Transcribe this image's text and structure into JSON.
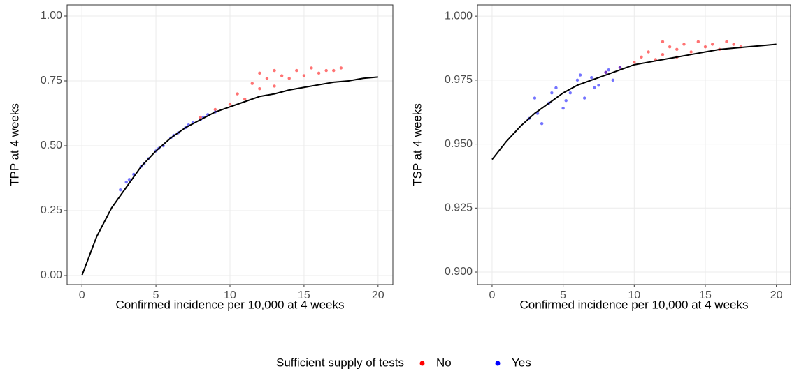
{
  "chart_data": [
    {
      "type": "scatter",
      "xlabel": "Confirmed incidence per 10,000 at 4 weeks",
      "ylabel": "TPP at 4 weeks",
      "xlim": [
        -1,
        21
      ],
      "ylim": [
        -0.035,
        1.043
      ],
      "xticks": [
        0,
        5,
        10,
        15,
        20
      ],
      "yticks": [
        {
          "value": 0,
          "label": "0.00"
        },
        0.25,
        {
          "value": 0.5,
          "label": "0.50"
        },
        0.75,
        {
          "value": 1,
          "label": "1.00"
        }
      ],
      "grid": true,
      "series": [
        {
          "name": "No",
          "color": "#ff0000",
          "x": [
            8,
            9,
            10,
            10.5,
            11,
            11.5,
            12,
            12,
            12.5,
            13,
            13,
            13.5,
            14,
            14.5,
            15,
            15.5,
            16,
            16.5,
            17,
            17.5
          ],
          "values": [
            0.61,
            0.64,
            0.66,
            0.7,
            0.68,
            0.74,
            0.78,
            0.72,
            0.76,
            0.79,
            0.73,
            0.77,
            0.76,
            0.79,
            0.77,
            0.8,
            0.78,
            0.79,
            0.79,
            0.8
          ]
        },
        {
          "name": "Yes",
          "color": "#0000ff",
          "x": [
            2.6,
            3,
            3.5,
            4,
            4.5,
            5,
            5.5,
            6,
            6.5,
            7,
            7.5,
            8,
            8.5,
            9,
            3.2,
            4.2,
            5.2,
            6.2,
            7.2,
            8.2
          ],
          "values": [
            0.33,
            0.36,
            0.39,
            0.42,
            0.45,
            0.48,
            0.5,
            0.53,
            0.55,
            0.57,
            0.59,
            0.6,
            0.62,
            0.63,
            0.37,
            0.43,
            0.49,
            0.54,
            0.58,
            0.61
          ]
        }
      ],
      "curve": {
        "color": "#000000",
        "x": [
          0,
          1,
          2,
          3,
          4,
          5,
          6,
          7,
          8,
          9,
          10,
          11,
          12,
          13,
          14,
          15,
          16,
          17,
          18,
          19,
          20
        ],
        "y": [
          0,
          0.15,
          0.26,
          0.34,
          0.42,
          0.48,
          0.53,
          0.57,
          0.6,
          0.63,
          0.65,
          0.67,
          0.69,
          0.7,
          0.715,
          0.725,
          0.735,
          0.745,
          0.75,
          0.76,
          0.765
        ]
      }
    },
    {
      "type": "scatter",
      "xlabel": "Confirmed incidence per 10,000 at 4 weeks",
      "ylabel": "TSP at 4 weeks",
      "xlim": [
        -1.03,
        21
      ],
      "ylim": [
        0.8951,
        1.0044
      ],
      "xticks": [
        0,
        5,
        10,
        15,
        20
      ],
      "yticks": [
        {
          "value": 0.9,
          "label": "0.900"
        },
        0.925,
        {
          "value": 0.95,
          "label": "0.950"
        },
        0.975,
        {
          "value": 1,
          "label": "1.000"
        }
      ],
      "grid": true,
      "series": [
        {
          "name": "No",
          "color": "#ff0000",
          "x": [
            8,
            9,
            10,
            10.5,
            11,
            11.5,
            12,
            12,
            12.5,
            13,
            13,
            13.5,
            14,
            14.5,
            15,
            15.5,
            16,
            16.5,
            17,
            17.5
          ],
          "values": [
            0.978,
            0.98,
            0.982,
            0.984,
            0.986,
            0.983,
            0.99,
            0.985,
            0.988,
            0.987,
            0.984,
            0.989,
            0.986,
            0.99,
            0.988,
            0.989,
            0.987,
            0.99,
            0.989,
            0.988
          ]
        },
        {
          "name": "Yes",
          "color": "#0000ff",
          "x": [
            2.6,
            3,
            3.5,
            4,
            4.5,
            5,
            5.5,
            6,
            6.5,
            7,
            7.5,
            8,
            8.5,
            9,
            3.2,
            4.2,
            5.2,
            6.2,
            7.2,
            8.2
          ],
          "values": [
            0.96,
            0.968,
            0.958,
            0.966,
            0.972,
            0.964,
            0.97,
            0.975,
            0.968,
            0.976,
            0.973,
            0.978,
            0.975,
            0.98,
            0.962,
            0.97,
            0.967,
            0.977,
            0.972,
            0.979
          ]
        }
      ],
      "curve": {
        "color": "#000000",
        "x": [
          0,
          1,
          2,
          3,
          4,
          5,
          6,
          7,
          8,
          9,
          10,
          11,
          12,
          13,
          14,
          15,
          16,
          17,
          18,
          19,
          20
        ],
        "y": [
          0.944,
          0.951,
          0.957,
          0.962,
          0.966,
          0.97,
          0.973,
          0.975,
          0.977,
          0.979,
          0.981,
          0.982,
          0.983,
          0.984,
          0.985,
          0.986,
          0.987,
          0.9875,
          0.988,
          0.9885,
          0.989
        ]
      }
    }
  ],
  "legend": {
    "title": "Sufficient supply of tests"
  }
}
